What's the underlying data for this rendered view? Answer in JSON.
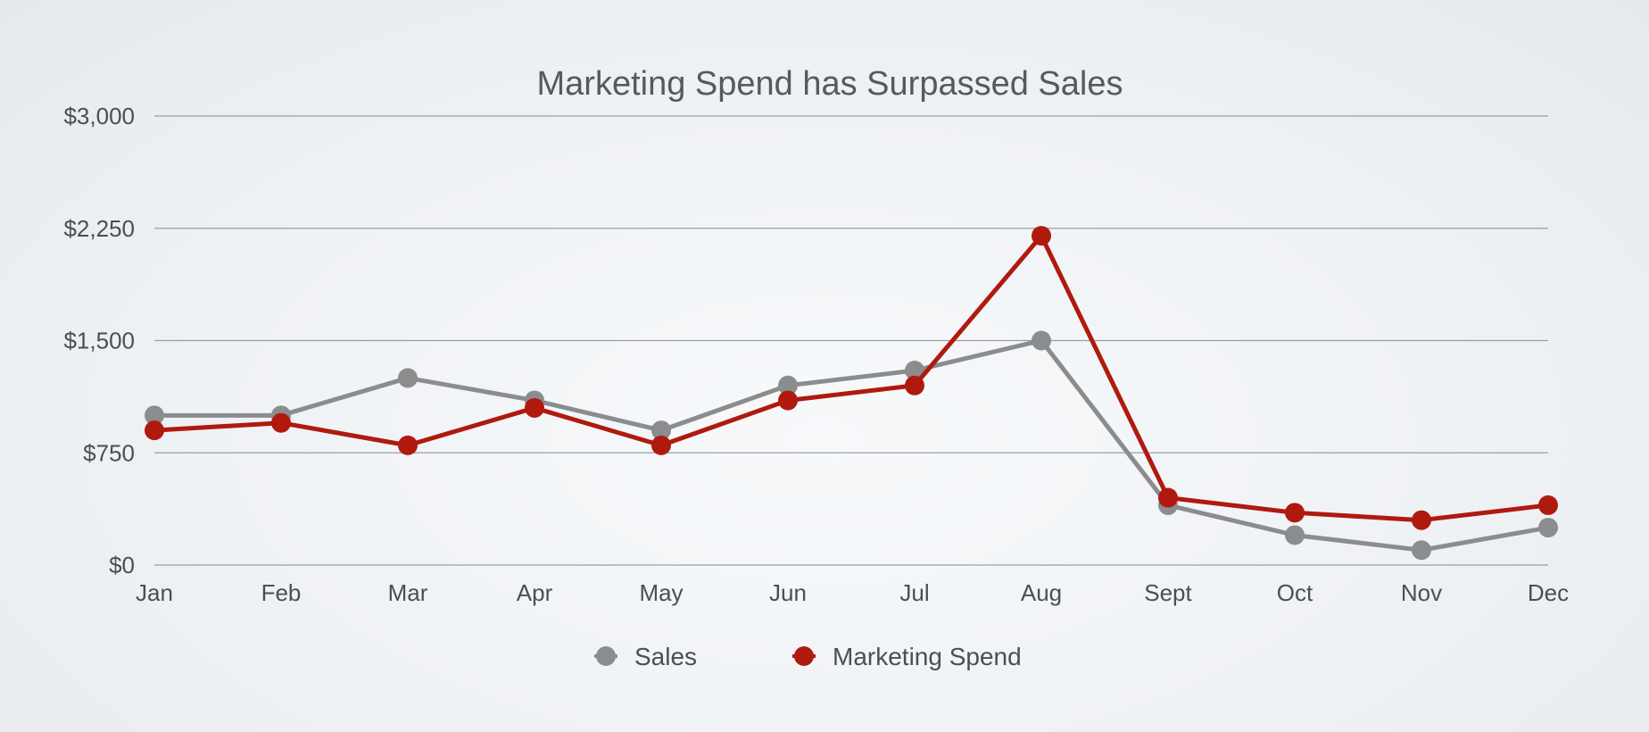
{
  "chart_data": {
    "type": "line",
    "title": "Marketing Spend has Surpassed Sales",
    "xlabel": "",
    "ylabel": "",
    "categories": [
      "Jan",
      "Feb",
      "Mar",
      "Apr",
      "May",
      "Jun",
      "Jul",
      "Aug",
      "Sept",
      "Oct",
      "Nov",
      "Dec"
    ],
    "ylim": [
      0,
      3000
    ],
    "yticks": [
      0,
      750,
      1500,
      2250,
      3000
    ],
    "ytick_labels": [
      "$0",
      "$750",
      "$1,500",
      "$2,250",
      "$3,000"
    ],
    "grid": true,
    "legend_position": "bottom",
    "series": [
      {
        "name": "Sales",
        "color": "#8a8c8e",
        "values": [
          1000,
          1000,
          1250,
          1100,
          900,
          1200,
          1300,
          1500,
          400,
          200,
          100,
          250
        ]
      },
      {
        "name": "Marketing Spend",
        "color": "#b01a0e",
        "values": [
          900,
          950,
          800,
          1050,
          800,
          1100,
          1200,
          2200,
          450,
          350,
          300,
          400
        ]
      }
    ]
  }
}
